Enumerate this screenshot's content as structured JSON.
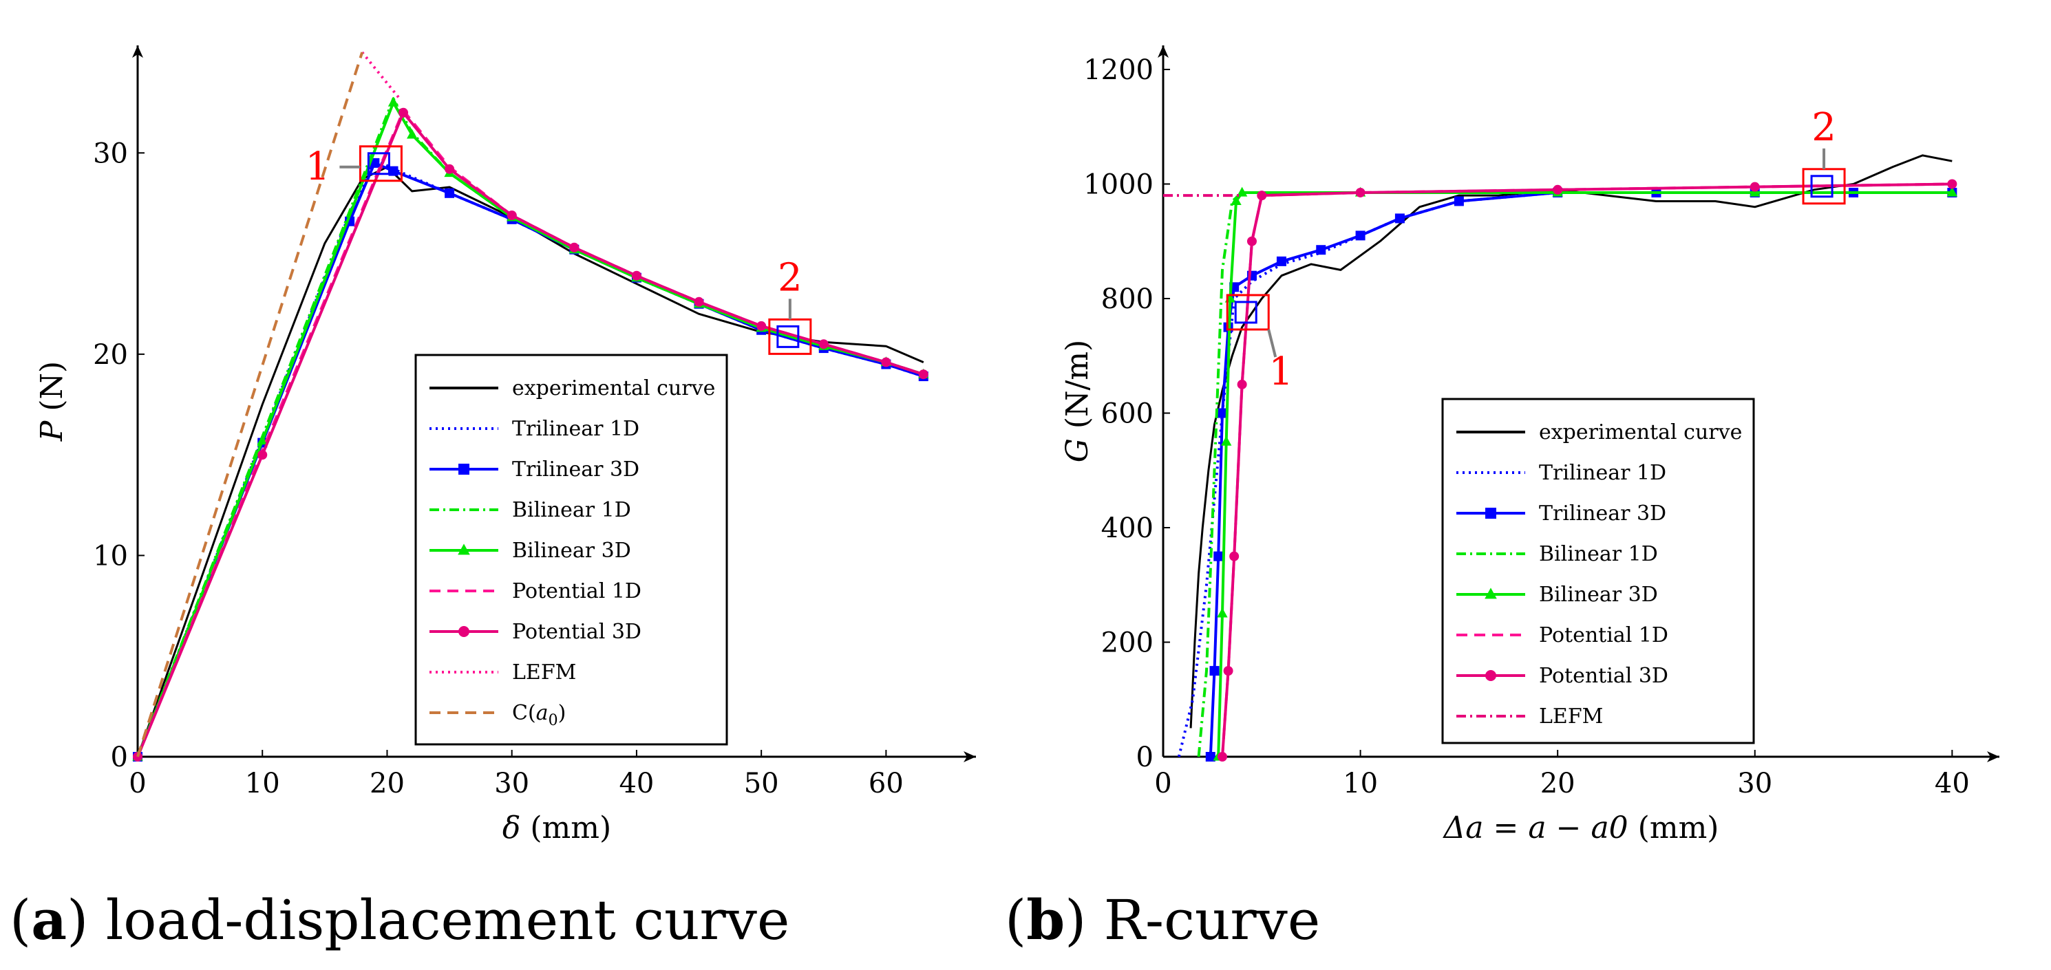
{
  "charts": [
    {
      "id": "a",
      "type": "line",
      "caption_letter": "a",
      "caption_text": "load-displacement curve",
      "xlabel_sym": "δ",
      "xlabel_unit": " (mm)",
      "ylabel_sym": "P",
      "ylabel_unit": " (N)",
      "xlim": [
        0,
        65
      ],
      "ylim": [
        0,
        35
      ],
      "xticks": [
        0,
        10,
        20,
        30,
        40,
        50,
        60
      ],
      "yticks": [
        0,
        10,
        20,
        30
      ],
      "markers": [
        {
          "label": "1",
          "x": 19.5,
          "y": 29.3
        },
        {
          "label": "2",
          "x": 52.3,
          "y": 20.7
        }
      ],
      "legend": [
        {
          "label": "experimental curve",
          "color": "#000000",
          "dash": "",
          "marker": "none"
        },
        {
          "label": "Trilinear 1D",
          "color": "#0000ff",
          "dash": "3,6",
          "marker": "none"
        },
        {
          "label": "Trilinear 3D",
          "color": "#0000ff",
          "dash": "",
          "marker": "square"
        },
        {
          "label": "Bilinear 1D",
          "color": "#00e600",
          "dash": "14,6,3,6",
          "marker": "none"
        },
        {
          "label": "Bilinear 3D",
          "color": "#00e600",
          "dash": "",
          "marker": "triangle"
        },
        {
          "label": "Potential 1D",
          "color": "#ff1493",
          "dash": "16,10",
          "marker": "none"
        },
        {
          "label": "Potential 3D",
          "color": "#e6007a",
          "dash": "",
          "marker": "circle"
        },
        {
          "label": "LEFM",
          "color": "#ff1493",
          "dash": "3,6",
          "marker": "none"
        },
        {
          "label": "C(a0)",
          "color": "#c8783c",
          "dash": "16,10",
          "marker": "none"
        }
      ]
    },
    {
      "id": "b",
      "type": "line",
      "caption_letter": "b",
      "caption_text": "R-curve",
      "xlabel_sym": "Δa = a − a0",
      "xlabel_unit": " (mm)",
      "ylabel_sym": "G",
      "ylabel_unit": " (N/m)",
      "xlim": [
        0,
        41
      ],
      "ylim": [
        0,
        1230
      ],
      "xticks": [
        0,
        10,
        20,
        30,
        40
      ],
      "yticks": [
        0,
        200,
        400,
        600,
        800,
        1000,
        1200
      ],
      "markers": [
        {
          "label": "1",
          "x": 4.3,
          "y": 770
        },
        {
          "label": "2",
          "x": 33.5,
          "y": 990
        }
      ],
      "legend": [
        {
          "label": "experimental curve",
          "color": "#000000",
          "dash": "",
          "marker": "none"
        },
        {
          "label": "Trilinear 1D",
          "color": "#0000ff",
          "dash": "3,6",
          "marker": "none"
        },
        {
          "label": "Trilinear 3D",
          "color": "#0000ff",
          "dash": "",
          "marker": "square"
        },
        {
          "label": "Bilinear 1D",
          "color": "#00e600",
          "dash": "14,6,3,6",
          "marker": "none"
        },
        {
          "label": "Bilinear 3D",
          "color": "#00e600",
          "dash": "",
          "marker": "triangle"
        },
        {
          "label": "Potential 1D",
          "color": "#ff1493",
          "dash": "16,10",
          "marker": "none"
        },
        {
          "label": "Potential 3D",
          "color": "#e6007a",
          "dash": "",
          "marker": "circle"
        },
        {
          "label": "LEFM",
          "color": "#e6007a",
          "dash": "14,6,3,6",
          "marker": "none"
        }
      ]
    }
  ],
  "chart_data": [
    {
      "type": "line",
      "title": "load-displacement curve",
      "xlabel": "δ (mm)",
      "ylabel": "P (N)",
      "xlim": [
        0,
        65
      ],
      "ylim": [
        0,
        35
      ],
      "series": [
        {
          "name": "experimental curve",
          "x": [
            0,
            5,
            10,
            15,
            18,
            20,
            22,
            25,
            30,
            35,
            40,
            45,
            50,
            55,
            60,
            63
          ],
          "y": [
            0,
            8.7,
            17.5,
            25.5,
            28.7,
            29.3,
            28.1,
            28.3,
            26.8,
            25.0,
            23.5,
            22.0,
            21.1,
            20.6,
            20.4,
            19.6
          ]
        },
        {
          "name": "Trilinear 1D",
          "x": [
            0,
            10,
            17,
            19,
            20.5,
            25,
            30,
            35,
            40,
            45,
            50,
            55,
            60,
            63
          ],
          "y": [
            0,
            15.8,
            27.0,
            29.7,
            29.2,
            28.0,
            26.7,
            25.2,
            23.8,
            22.5,
            21.2,
            20.3,
            19.5,
            18.9
          ]
        },
        {
          "name": "Trilinear 3D",
          "x": [
            0,
            10,
            17,
            19,
            20.5,
            25,
            30,
            35,
            40,
            45,
            50,
            55,
            60,
            63
          ],
          "y": [
            0,
            15.6,
            26.6,
            29.5,
            29.1,
            28.0,
            26.7,
            25.2,
            23.8,
            22.5,
            21.2,
            20.3,
            19.5,
            18.9
          ]
        },
        {
          "name": "Bilinear 1D",
          "x": [
            0,
            10,
            20.5,
            22,
            25,
            30,
            35,
            40,
            45,
            50,
            55,
            60,
            63
          ],
          "y": [
            0,
            15.9,
            32.7,
            31.0,
            29.0,
            26.8,
            25.2,
            23.8,
            22.5,
            21.3,
            20.4,
            19.6,
            19.0
          ]
        },
        {
          "name": "Bilinear 3D",
          "x": [
            0,
            10,
            20.5,
            22,
            25,
            30,
            35,
            40,
            45,
            50,
            55,
            60,
            63
          ],
          "y": [
            0,
            15.7,
            32.5,
            30.9,
            29.0,
            26.8,
            25.2,
            23.8,
            22.5,
            21.3,
            20.4,
            19.6,
            19.0
          ]
        },
        {
          "name": "Potential 1D",
          "x": [
            0,
            10,
            21.3,
            25,
            30,
            35,
            40,
            45,
            50,
            55,
            60,
            63
          ],
          "y": [
            0,
            15.2,
            32.1,
            29.3,
            26.9,
            25.3,
            23.9,
            22.6,
            21.4,
            20.5,
            19.6,
            19.0
          ]
        },
        {
          "name": "Potential 3D",
          "x": [
            0,
            10,
            21.3,
            25,
            30,
            35,
            40,
            45,
            50,
            55,
            60,
            63
          ],
          "y": [
            0,
            15.0,
            32.0,
            29.2,
            26.9,
            25.3,
            23.9,
            22.6,
            21.4,
            20.5,
            19.6,
            19.0
          ]
        },
        {
          "name": "LEFM",
          "x": [
            18.0,
            21.0
          ],
          "y": [
            35.0,
            32.7
          ]
        },
        {
          "name": "C(a0)",
          "x": [
            0,
            18.0
          ],
          "y": [
            0,
            35.0
          ]
        }
      ]
    },
    {
      "type": "line",
      "title": "R-curve",
      "xlabel": "Δa = a − a0 (mm)",
      "ylabel": "G (N/m)",
      "xlim": [
        0,
        41
      ],
      "ylim": [
        0,
        1230
      ],
      "series": [
        {
          "name": "experimental curve",
          "x": [
            1.4,
            1.6,
            1.8,
            2.0,
            2.3,
            2.6,
            3.0,
            3.5,
            4.0,
            5.0,
            6.0,
            7.5,
            9.0,
            11.0,
            13.0,
            15.0,
            17.0,
            20.0,
            25.0,
            28.0,
            30.0,
            33.0,
            35.0,
            37.0,
            38.5,
            40.0
          ],
          "y": [
            50,
            200,
            320,
            400,
            500,
            580,
            640,
            700,
            750,
            800,
            840,
            860,
            850,
            900,
            960,
            980,
            980,
            990,
            970,
            970,
            960,
            990,
            1000,
            1030,
            1050,
            1040
          ]
        },
        {
          "name": "Trilinear 1D",
          "x": [
            0.8,
            1.5,
            2.2,
            3.0,
            3.6,
            4.5,
            6.0,
            8.0,
            10.0,
            12.0,
            15.0,
            20.0,
            25.0,
            30.0,
            35.0,
            40.0
          ],
          "y": [
            0,
            100,
            300,
            600,
            800,
            830,
            860,
            880,
            910,
            940,
            970,
            985,
            985,
            985,
            985,
            985
          ]
        },
        {
          "name": "Trilinear 3D",
          "x": [
            2.4,
            2.6,
            2.8,
            3.0,
            3.3,
            3.6,
            4.5,
            6.0,
            8.0,
            10.0,
            12.0,
            15.0,
            20.0,
            25.0,
            30.0,
            35.0,
            40.0
          ],
          "y": [
            0,
            150,
            350,
            600,
            750,
            820,
            840,
            865,
            885,
            910,
            940,
            970,
            985,
            985,
            985,
            985,
            985
          ]
        },
        {
          "name": "Bilinear 1D",
          "x": [
            1.8,
            2.2,
            2.6,
            3.0,
            3.5,
            4.0,
            10.0,
            20.0,
            30.0,
            40.0
          ],
          "y": [
            0,
            150,
            500,
            850,
            970,
            985,
            985,
            985,
            985,
            985
          ]
        },
        {
          "name": "Bilinear 3D",
          "x": [
            2.8,
            3.0,
            3.2,
            3.4,
            3.7,
            4.0,
            10.0,
            20.0,
            30.0,
            40.0
          ],
          "y": [
            0,
            250,
            550,
            800,
            970,
            985,
            985,
            985,
            985,
            985
          ]
        },
        {
          "name": "Potential 1D",
          "x": [
            3.0,
            3.3,
            3.6,
            4.0,
            4.5,
            5.0,
            10.0,
            20.0,
            30.0,
            40.0
          ],
          "y": [
            0,
            150,
            350,
            650,
            900,
            980,
            985,
            990,
            995,
            1000
          ]
        },
        {
          "name": "Potential 3D",
          "x": [
            3.0,
            3.3,
            3.6,
            4.0,
            4.5,
            5.0,
            10.0,
            20.0,
            30.0,
            40.0
          ],
          "y": [
            0,
            150,
            350,
            650,
            900,
            980,
            985,
            990,
            995,
            1000
          ]
        },
        {
          "name": "LEFM",
          "x": [
            0.0,
            4.0
          ],
          "y": [
            980,
            980
          ]
        }
      ]
    }
  ]
}
